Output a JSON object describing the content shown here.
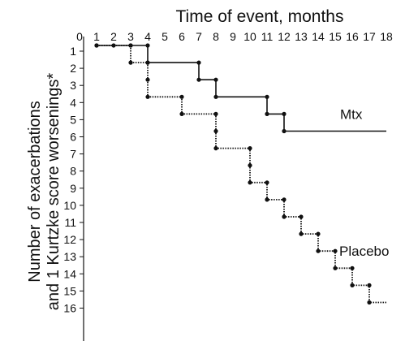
{
  "chart_data": {
    "type": "line",
    "title": "Time of event, months",
    "xlabel": "",
    "ylabel_lines": [
      "Number of exacerbations",
      "and 1 Kurtzke score worsenings*"
    ],
    "x_ticks": [
      0,
      1,
      2,
      3,
      4,
      5,
      6,
      7,
      8,
      9,
      10,
      11,
      12,
      13,
      14,
      15,
      16,
      17,
      18
    ],
    "y_ticks": [
      1,
      2,
      3,
      4,
      5,
      6,
      7,
      8,
      9,
      10,
      11,
      12,
      13,
      14,
      15,
      16
    ],
    "xlim": [
      0,
      18
    ],
    "ylim": [
      0.5,
      16.5
    ],
    "y_inverted": true,
    "x_axis_position": "top",
    "grid": false,
    "series": [
      {
        "name": "Mtx",
        "style": "solid",
        "color": "#111111",
        "points": [
          {
            "x": 1,
            "y": 1
          },
          {
            "x": 2,
            "y": 1
          },
          {
            "x": 3,
            "y": 1
          },
          {
            "x": 4,
            "y": 1
          },
          {
            "x": 4,
            "y": 2
          },
          {
            "x": 7,
            "y": 2
          },
          {
            "x": 7,
            "y": 3
          },
          {
            "x": 8,
            "y": 3
          },
          {
            "x": 8,
            "y": 4
          },
          {
            "x": 11,
            "y": 4
          },
          {
            "x": 11,
            "y": 5
          },
          {
            "x": 12,
            "y": 5
          },
          {
            "x": 12,
            "y": 6
          }
        ],
        "end_x": 18
      },
      {
        "name": "Placebo",
        "style": "dotted",
        "color": "#111111",
        "points": [
          {
            "x": 1,
            "y": 1
          },
          {
            "x": 3,
            "y": 1
          },
          {
            "x": 3,
            "y": 2
          },
          {
            "x": 4,
            "y": 2
          },
          {
            "x": 4,
            "y": 3
          },
          {
            "x": 4,
            "y": 4
          },
          {
            "x": 6,
            "y": 4
          },
          {
            "x": 6,
            "y": 5
          },
          {
            "x": 8,
            "y": 5
          },
          {
            "x": 8,
            "y": 6
          },
          {
            "x": 8,
            "y": 7
          },
          {
            "x": 10,
            "y": 7
          },
          {
            "x": 10,
            "y": 8
          },
          {
            "x": 10,
            "y": 9
          },
          {
            "x": 11,
            "y": 9
          },
          {
            "x": 11,
            "y": 10
          },
          {
            "x": 12,
            "y": 10
          },
          {
            "x": 12,
            "y": 11
          },
          {
            "x": 13,
            "y": 11
          },
          {
            "x": 13,
            "y": 12
          },
          {
            "x": 14,
            "y": 12
          },
          {
            "x": 14,
            "y": 13
          },
          {
            "x": 15,
            "y": 13
          },
          {
            "x": 15,
            "y": 14
          },
          {
            "x": 16,
            "y": 14
          },
          {
            "x": 16,
            "y": 15
          },
          {
            "x": 17,
            "y": 15
          },
          {
            "x": 17,
            "y": 16
          }
        ],
        "end_x": 18
      }
    ]
  }
}
